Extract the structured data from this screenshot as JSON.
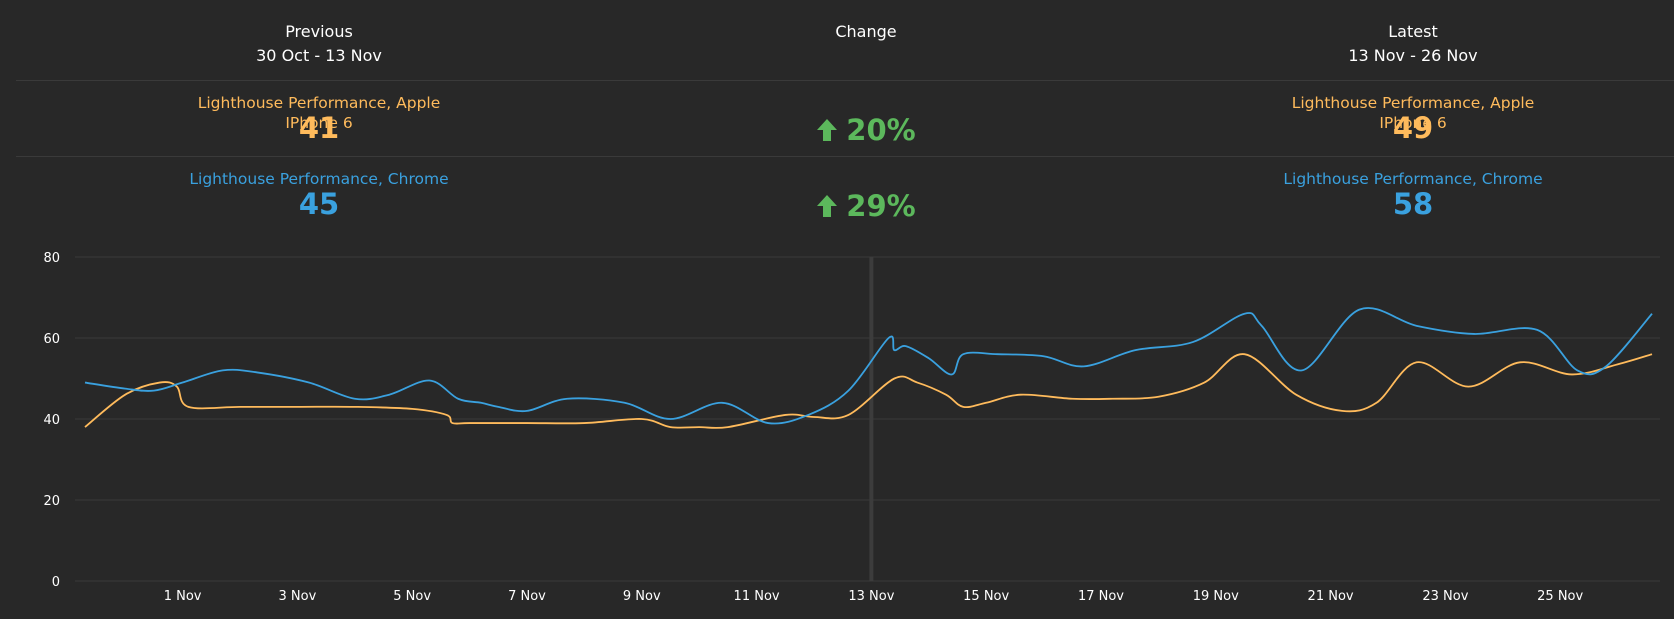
{
  "header": {
    "previous": {
      "title": "Previous",
      "range": "30 Oct - 13 Nov"
    },
    "change": {
      "title": "Change"
    },
    "latest": {
      "title": "Latest",
      "range": "13 Nov - 26 Nov"
    }
  },
  "metrics": [
    {
      "label": "Lighthouse Performance, Apple IPhone 6",
      "previous": "41",
      "change": "20%",
      "latest": "49",
      "color": "#ffbb5c"
    },
    {
      "label": "Lighthouse Performance, Chrome",
      "previous": "45",
      "change": "29%",
      "latest": "58",
      "color": "#3aa1df"
    }
  ],
  "colors": {
    "background": "#282828",
    "grid": "#3a3a3a",
    "increase": "#5cb85c",
    "period_marker": "#3c3c3c"
  },
  "icons": {
    "change": "arrow-up-icon"
  },
  "chart_data": {
    "type": "line",
    "ylim": [
      0,
      80
    ],
    "yticks": [
      0,
      20,
      40,
      60,
      80
    ],
    "xlim": [
      "30 Oct",
      "26 Nov"
    ],
    "xticks": [
      "1 Nov",
      "3 Nov",
      "5 Nov",
      "7 Nov",
      "9 Nov",
      "11 Nov",
      "13 Nov",
      "15 Nov",
      "17 Nov",
      "19 Nov",
      "21 Nov",
      "23 Nov",
      "25 Nov"
    ],
    "tick_days": [
      2,
      4,
      6,
      8,
      10,
      12,
      14,
      16,
      18,
      20,
      22,
      24,
      26
    ],
    "divider_day": 14,
    "grid": true,
    "series": [
      {
        "name": "Lighthouse Performance, Apple IPhone 6",
        "color": "#ffbb5c",
        "points": [
          [
            0.3,
            38
          ],
          [
            1.0,
            46
          ],
          [
            1.6,
            49
          ],
          [
            1.9,
            48
          ],
          [
            2.1,
            43
          ],
          [
            3,
            43
          ],
          [
            4,
            43
          ],
          [
            5,
            43
          ],
          [
            6,
            42.5
          ],
          [
            6.6,
            41
          ],
          [
            6.7,
            39
          ],
          [
            7,
            39
          ],
          [
            8,
            39
          ],
          [
            9,
            39
          ],
          [
            10,
            40
          ],
          [
            10.5,
            38
          ],
          [
            11,
            38
          ],
          [
            11.5,
            38
          ],
          [
            12.5,
            41
          ],
          [
            13,
            40.5
          ],
          [
            13.6,
            41
          ],
          [
            14.4,
            50
          ],
          [
            14.8,
            49
          ],
          [
            15.3,
            46
          ],
          [
            15.6,
            43
          ],
          [
            16,
            44
          ],
          [
            16.6,
            46
          ],
          [
            17.5,
            45
          ],
          [
            18.2,
            45
          ],
          [
            19,
            45.5
          ],
          [
            19.8,
            49
          ],
          [
            20.5,
            56
          ],
          [
            21.4,
            46
          ],
          [
            22.2,
            42
          ],
          [
            22.8,
            44
          ],
          [
            23.5,
            54
          ],
          [
            24.4,
            48
          ],
          [
            25.3,
            54
          ],
          [
            26.2,
            51
          ],
          [
            27.0,
            53.5
          ],
          [
            27.6,
            56
          ]
        ]
      },
      {
        "name": "Lighthouse Performance, Chrome",
        "color": "#3aa1df",
        "points": [
          [
            0.3,
            49
          ],
          [
            1.0,
            47.5
          ],
          [
            1.5,
            47
          ],
          [
            2.0,
            49
          ],
          [
            2.7,
            52
          ],
          [
            3.3,
            51.5
          ],
          [
            4.2,
            49
          ],
          [
            5,
            45
          ],
          [
            5.6,
            46
          ],
          [
            6.3,
            49.5
          ],
          [
            6.8,
            45
          ],
          [
            7.2,
            44
          ],
          [
            7.5,
            43
          ],
          [
            8,
            42
          ],
          [
            8.7,
            45
          ],
          [
            9.7,
            44
          ],
          [
            10.5,
            40
          ],
          [
            11.4,
            44
          ],
          [
            12.2,
            39
          ],
          [
            12.9,
            41
          ],
          [
            13.6,
            47
          ],
          [
            14.3,
            60
          ],
          [
            14.4,
            57
          ],
          [
            14.6,
            58
          ],
          [
            15.0,
            55
          ],
          [
            15.4,
            51
          ],
          [
            15.6,
            56
          ],
          [
            16.2,
            56
          ],
          [
            17.0,
            55.5
          ],
          [
            17.7,
            53
          ],
          [
            18.6,
            57
          ],
          [
            19.6,
            59
          ],
          [
            20.5,
            66
          ],
          [
            20.8,
            63
          ],
          [
            21.5,
            52
          ],
          [
            22.5,
            67
          ],
          [
            23.5,
            63
          ],
          [
            24.5,
            61
          ],
          [
            25.6,
            62
          ],
          [
            26.3,
            52
          ],
          [
            26.8,
            53
          ],
          [
            27.6,
            66
          ]
        ]
      }
    ]
  }
}
